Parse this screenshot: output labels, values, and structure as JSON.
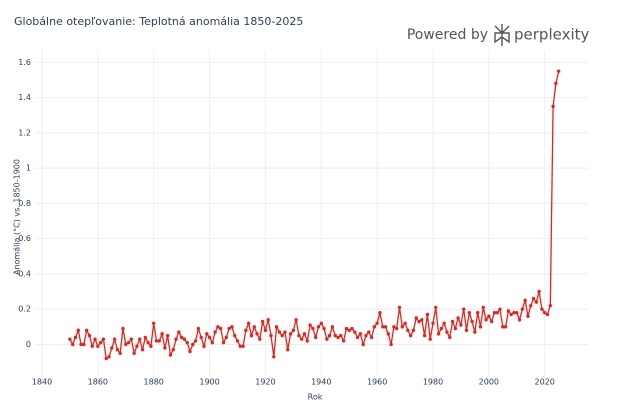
{
  "chart_data": {
    "type": "line",
    "title": "Globálne otepľovanie: Teplotná anomália 1850-2025",
    "watermark": {
      "prefix": "Powered by",
      "brand": "perplexity"
    },
    "xlabel": "Rok",
    "ylabel": "Anomália (°C) vs. 1850-1900",
    "color": "#e8221b",
    "grid": true,
    "xlim": [
      1837.5,
      2035.5
    ],
    "xticks": [
      1840,
      1860,
      1880,
      1900,
      1920,
      1940,
      1960,
      1980,
      2000,
      2020
    ],
    "ylim": [
      -0.23,
      1.67
    ],
    "yticks": [
      0,
      0.2,
      0.4,
      0.6,
      0.8,
      1,
      1.2,
      1.4,
      1.6
    ],
    "x": [
      1850,
      1851,
      1852,
      1853,
      1854,
      1855,
      1856,
      1857,
      1858,
      1859,
      1860,
      1861,
      1862,
      1863,
      1864,
      1865,
      1866,
      1867,
      1868,
      1869,
      1870,
      1871,
      1872,
      1873,
      1874,
      1875,
      1876,
      1877,
      1878,
      1879,
      1880,
      1881,
      1882,
      1883,
      1884,
      1885,
      1886,
      1887,
      1888,
      1889,
      1890,
      1891,
      1892,
      1893,
      1894,
      1895,
      1896,
      1897,
      1898,
      1899,
      1900,
      1901,
      1902,
      1903,
      1904,
      1905,
      1906,
      1907,
      1908,
      1909,
      1910,
      1911,
      1912,
      1913,
      1914,
      1915,
      1916,
      1917,
      1918,
      1919,
      1920,
      1921,
      1922,
      1923,
      1924,
      1925,
      1926,
      1927,
      1928,
      1929,
      1930,
      1931,
      1932,
      1933,
      1934,
      1935,
      1936,
      1937,
      1938,
      1939,
      1940,
      1941,
      1942,
      1943,
      1944,
      1945,
      1946,
      1947,
      1948,
      1949,
      1950,
      1951,
      1952,
      1953,
      1954,
      1955,
      1956,
      1957,
      1958,
      1959,
      1960,
      1961,
      1962,
      1963,
      1964,
      1965,
      1966,
      1967,
      1968,
      1969,
      1970,
      1971,
      1972,
      1973,
      1974,
      1975,
      1976,
      1977,
      1978,
      1979,
      1980,
      1981,
      1982,
      1983,
      1984,
      1985,
      1986,
      1987,
      1988,
      1989,
      1990,
      1991,
      1992,
      1993,
      1994,
      1995,
      1996,
      1997,
      1998,
      1999,
      2000,
      2001,
      2002,
      2003,
      2004,
      2005,
      2006,
      2007,
      2008,
      2009,
      2010,
      2011,
      2012,
      2013,
      2014,
      2015,
      2016,
      2017,
      2018,
      2019,
      2020,
      2021,
      2022,
      2023,
      2024,
      2025
    ],
    "values": [
      0.03,
      0.0,
      0.04,
      0.08,
      0.0,
      0.0,
      0.08,
      0.05,
      -0.01,
      0.03,
      -0.01,
      0.01,
      0.03,
      -0.08,
      -0.07,
      -0.02,
      0.03,
      -0.03,
      -0.05,
      0.09,
      0.0,
      0.01,
      0.03,
      -0.05,
      -0.01,
      0.03,
      -0.03,
      0.04,
      0.01,
      -0.01,
      0.12,
      0.02,
      0.02,
      0.06,
      -0.02,
      0.05,
      -0.06,
      -0.03,
      0.03,
      0.07,
      0.04,
      0.03,
      0.01,
      -0.04,
      0.0,
      0.02,
      0.09,
      0.04,
      -0.01,
      0.06,
      0.04,
      0.01,
      0.07,
      0.1,
      0.09,
      0.01,
      0.04,
      0.09,
      0.1,
      0.05,
      0.02,
      -0.01,
      -0.01,
      0.08,
      0.12,
      0.05,
      0.1,
      0.06,
      0.03,
      0.13,
      0.08,
      0.14,
      0.05,
      -0.07,
      0.1,
      0.07,
      0.05,
      0.07,
      -0.03,
      0.06,
      0.08,
      0.14,
      0.05,
      0.03,
      0.06,
      0.02,
      0.11,
      0.09,
      0.04,
      0.1,
      0.12,
      0.09,
      0.03,
      0.05,
      0.1,
      0.05,
      0.04,
      0.05,
      0.02,
      0.09,
      0.08,
      0.09,
      0.07,
      0.04,
      0.06,
      0.0,
      0.05,
      0.07,
      0.04,
      0.1,
      0.12,
      0.18,
      0.1,
      0.1,
      0.06,
      0.0,
      0.1,
      0.09,
      0.21,
      0.1,
      0.12,
      0.08,
      0.05,
      0.08,
      0.15,
      0.13,
      0.14,
      0.05,
      0.17,
      0.03,
      0.12,
      0.21,
      0.06,
      0.09,
      0.12,
      0.07,
      0.04,
      0.13,
      0.09,
      0.15,
      0.11,
      0.2,
      0.08,
      0.18,
      0.13,
      0.07,
      0.18,
      0.1,
      0.21,
      0.14,
      0.16,
      0.13,
      0.18,
      0.18,
      0.2,
      0.1,
      0.1,
      0.19,
      0.17,
      0.18,
      0.18,
      0.14,
      0.2,
      0.25,
      0.16,
      0.22,
      0.26,
      0.24,
      0.3,
      0.2,
      0.18,
      0.17,
      0.22,
      1.35,
      1.48,
      1.55
    ]
  }
}
